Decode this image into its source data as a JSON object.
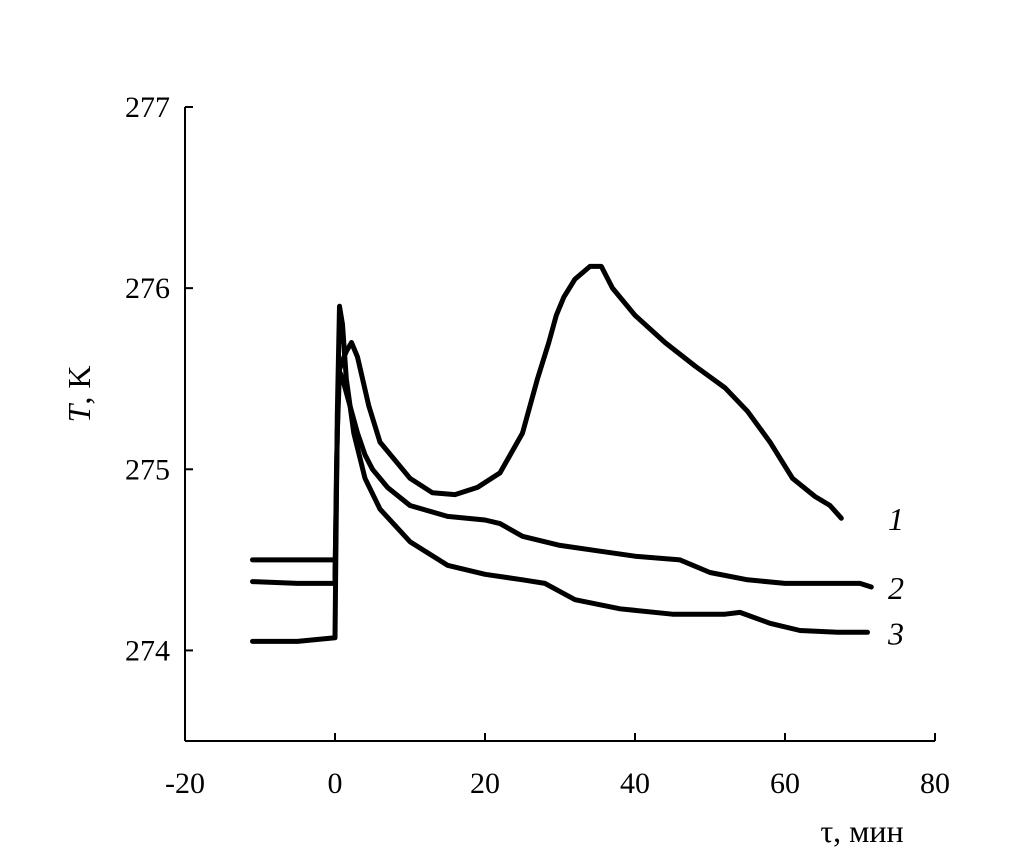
{
  "chart_data": {
    "type": "line",
    "xlabel": "τ, мин",
    "ylabel_symbol": "T",
    "ylabel_unit": ", K",
    "xlim": [
      -20,
      80
    ],
    "ylim": [
      273.5,
      277
    ],
    "xticks": [
      -20,
      0,
      20,
      40,
      60,
      80
    ],
    "yticks": [
      274,
      275,
      276,
      277
    ],
    "grid": false,
    "series": [
      {
        "name": "1",
        "x": [
          0,
          0.3,
          0.6,
          1.0,
          1.5,
          2.2,
          3.0,
          4.5,
          6.0,
          8.0,
          10.0,
          13.0,
          16.0,
          19.0,
          22.0,
          25.0,
          27.0,
          28.5,
          29.5,
          30.5,
          32.0,
          34.0,
          35.5,
          37.0,
          40.0,
          44.0,
          48.0,
          52.0,
          55.0,
          58.0,
          61.0,
          64.0,
          66.0,
          67.5
        ],
        "y": [
          274.4,
          275.2,
          275.55,
          275.6,
          275.65,
          275.7,
          275.62,
          275.35,
          275.15,
          275.05,
          274.95,
          274.87,
          274.86,
          274.9,
          274.98,
          275.2,
          275.5,
          275.7,
          275.85,
          275.95,
          276.05,
          276.12,
          276.12,
          276.0,
          275.85,
          275.7,
          275.57,
          275.45,
          275.32,
          275.15,
          274.95,
          274.85,
          274.8,
          274.73
        ]
      },
      {
        "name": "2",
        "x": [
          -11,
          -5,
          0,
          0.2,
          0.5,
          1.0,
          2.0,
          3.0,
          4.0,
          5.0,
          7.0,
          10.0,
          15.0,
          20.0,
          22.0,
          25.0,
          30.0,
          35.0,
          40.0,
          46.0,
          50.0,
          55.0,
          60.0,
          66.0,
          70.0,
          71.5
        ],
        "y": [
          274.38,
          274.37,
          274.37,
          275.0,
          275.55,
          275.5,
          275.35,
          275.2,
          275.08,
          275.0,
          274.9,
          274.8,
          274.74,
          274.72,
          274.7,
          274.63,
          274.58,
          274.55,
          274.52,
          274.5,
          274.43,
          274.39,
          274.37,
          274.37,
          274.37,
          274.35
        ]
      },
      {
        "name": "3",
        "x": [
          -11,
          -5,
          0,
          0.1,
          0.3,
          0.6,
          1.0,
          1.5,
          2.5,
          4.0,
          6.0,
          10.0,
          15.0,
          20.0,
          25.0,
          28.0,
          32.0,
          38.0,
          45.0,
          52.0,
          54.0,
          58.0,
          62.0,
          67.0,
          71.0
        ],
        "y": [
          274.05,
          274.05,
          274.07,
          274.5,
          275.3,
          275.9,
          275.8,
          275.5,
          275.2,
          274.95,
          274.78,
          274.6,
          274.47,
          274.42,
          274.39,
          274.37,
          274.28,
          274.23,
          274.2,
          274.2,
          274.21,
          274.15,
          274.11,
          274.1,
          274.1
        ]
      }
    ],
    "hold_lines": [
      {
        "x": [
          -11,
          0
        ],
        "y": [
          274.5,
          274.5
        ]
      }
    ]
  }
}
